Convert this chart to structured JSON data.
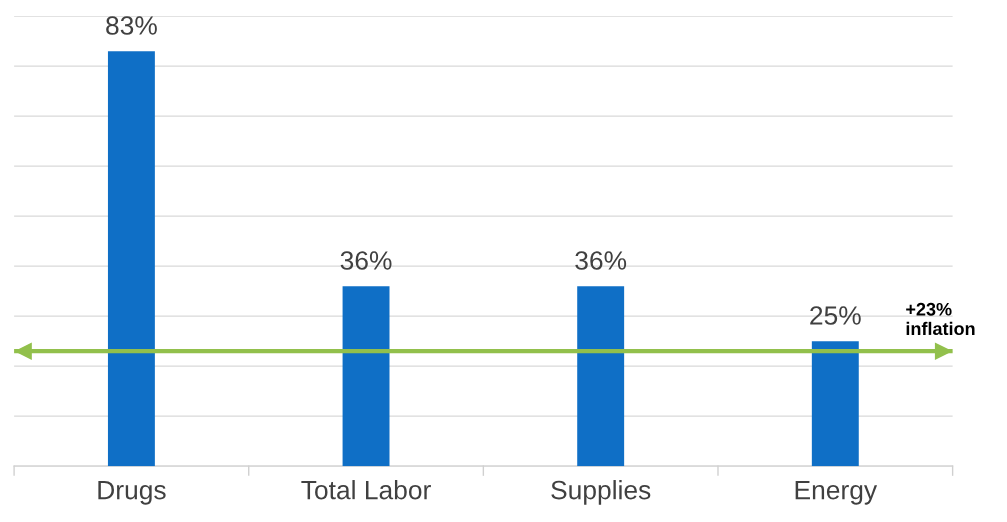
{
  "chart_data": {
    "type": "bar",
    "categories": [
      "Drugs",
      "Total Labor",
      "Supplies",
      "Energy"
    ],
    "values": [
      83,
      36,
      36,
      25
    ],
    "color": "#0f6fc6",
    "data_labels": true,
    "value_labels": [
      "83%",
      "36%",
      "36%",
      "25%"
    ],
    "ylim": [
      0,
      90
    ],
    "yticks": [
      {
        "value": 0,
        "label": null
      },
      {
        "value": 10,
        "label": null
      },
      {
        "value": 20,
        "label": null
      },
      {
        "value": 30,
        "label": null
      },
      {
        "value": 40,
        "label": null
      },
      {
        "value": 50,
        "label": null
      },
      {
        "value": 60,
        "label": null
      },
      {
        "value": 70,
        "label": null
      },
      {
        "value": 80,
        "label": null
      },
      {
        "value": 90,
        "label": null
      }
    ],
    "tick_labels": "x",
    "grid": "y",
    "ref_lines": [
      {
        "axis": "y",
        "value": 23,
        "label": "+23%\ninflation",
        "color": "#92c04c",
        "line_style": "solid"
      }
    ]
  }
}
